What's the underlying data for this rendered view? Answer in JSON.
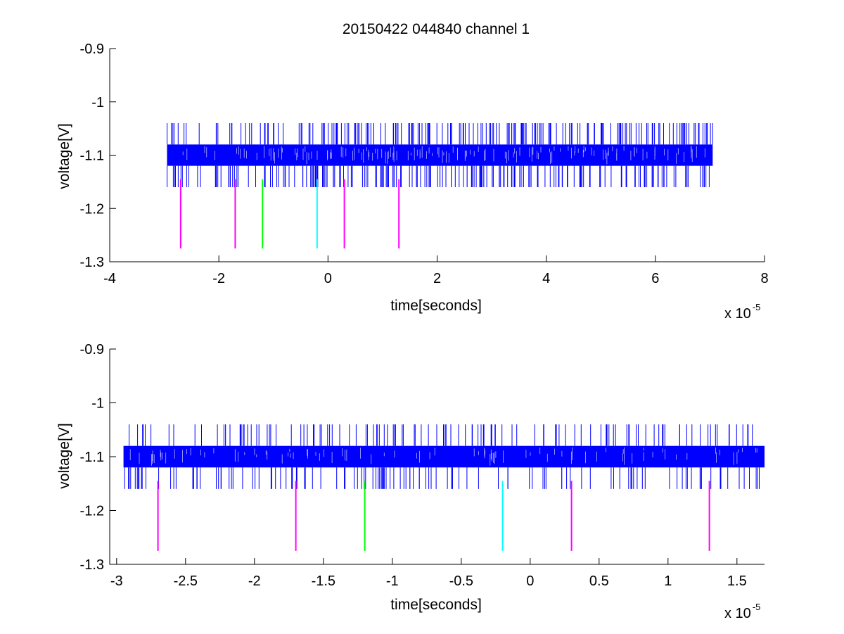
{
  "chart_data": [
    {
      "type": "line",
      "title": "20150422 044840 channel 1",
      "xlabel": "time[seconds]",
      "ylabel": "voltage[V]",
      "x_exponent_label": {
        "base": "x 10",
        "exp": "-5"
      },
      "xlim": [
        -4,
        8
      ],
      "ylim": [
        -1.3,
        -0.9
      ],
      "x_scale_factor": 1e-05,
      "x_ticks": [
        -4,
        -2,
        0,
        2,
        4,
        6,
        8
      ],
      "x_tick_labels": [
        "-4",
        "-2",
        "0",
        "2",
        "4",
        "6",
        "8"
      ],
      "y_ticks": [
        -0.9,
        -1.0,
        -1.1,
        -1.2,
        -1.3
      ],
      "y_tick_labels": [
        "-0.9",
        "-1",
        "-1.1",
        "-1.2",
        "-1.3"
      ],
      "grid": false,
      "signal": {
        "color": "#0000ff",
        "x_range": [
          -2.95,
          7.05
        ],
        "band": [
          -1.12,
          -1.08
        ],
        "spike_levels": [
          -1.16,
          -1.04
        ],
        "spike_count": 420
      },
      "markers": [
        {
          "x": -2.7,
          "y_range": [
            -1.275,
            -1.145
          ],
          "color": "#ff00ff"
        },
        {
          "x": -1.7,
          "y_range": [
            -1.275,
            -1.145
          ],
          "color": "#ff00ff"
        },
        {
          "x": -1.2,
          "y_range": [
            -1.275,
            -1.145
          ],
          "color": "#00ff00"
        },
        {
          "x": -0.2,
          "y_range": [
            -1.275,
            -1.145
          ],
          "color": "#00ffff"
        },
        {
          "x": 0.3,
          "y_range": [
            -1.275,
            -1.145
          ],
          "color": "#ff00ff"
        },
        {
          "x": 1.3,
          "y_range": [
            -1.275,
            -1.145
          ],
          "color": "#ff00ff"
        }
      ]
    },
    {
      "type": "line",
      "title": "",
      "xlabel": "time[seconds]",
      "ylabel": "voltage[V]",
      "x_exponent_label": {
        "base": "x 10",
        "exp": "-5"
      },
      "xlim": [
        -3.05,
        1.7
      ],
      "ylim": [
        -1.3,
        -0.9
      ],
      "x_scale_factor": 1e-05,
      "x_ticks": [
        -3,
        -2.5,
        -2,
        -1.5,
        -1,
        -0.5,
        0,
        0.5,
        1,
        1.5
      ],
      "x_tick_labels": [
        "-3",
        "-2.5",
        "-2",
        "-1.5",
        "-1",
        "-0.5",
        "0",
        "0.5",
        "1",
        "1.5"
      ],
      "y_ticks": [
        -0.9,
        -1.0,
        -1.1,
        -1.2,
        -1.3
      ],
      "y_tick_labels": [
        "-0.9",
        "-1",
        "-1.1",
        "-1.2",
        "-1.3"
      ],
      "grid": false,
      "signal": {
        "color": "#0000ff",
        "x_range": [
          -2.95,
          1.7
        ],
        "band": [
          -1.12,
          -1.08
        ],
        "spike_levels": [
          -1.16,
          -1.04
        ],
        "spike_count": 260
      },
      "markers": [
        {
          "x": -2.7,
          "y_range": [
            -1.275,
            -1.145
          ],
          "color": "#ff00ff"
        },
        {
          "x": -1.7,
          "y_range": [
            -1.275,
            -1.145
          ],
          "color": "#ff00ff"
        },
        {
          "x": -1.2,
          "y_range": [
            -1.275,
            -1.145
          ],
          "color": "#00ff00"
        },
        {
          "x": -0.2,
          "y_range": [
            -1.275,
            -1.145
          ],
          "color": "#00ffff"
        },
        {
          "x": 0.3,
          "y_range": [
            -1.275,
            -1.145
          ],
          "color": "#ff00ff"
        },
        {
          "x": 1.3,
          "y_range": [
            -1.275,
            -1.145
          ],
          "color": "#ff00ff"
        }
      ]
    }
  ]
}
